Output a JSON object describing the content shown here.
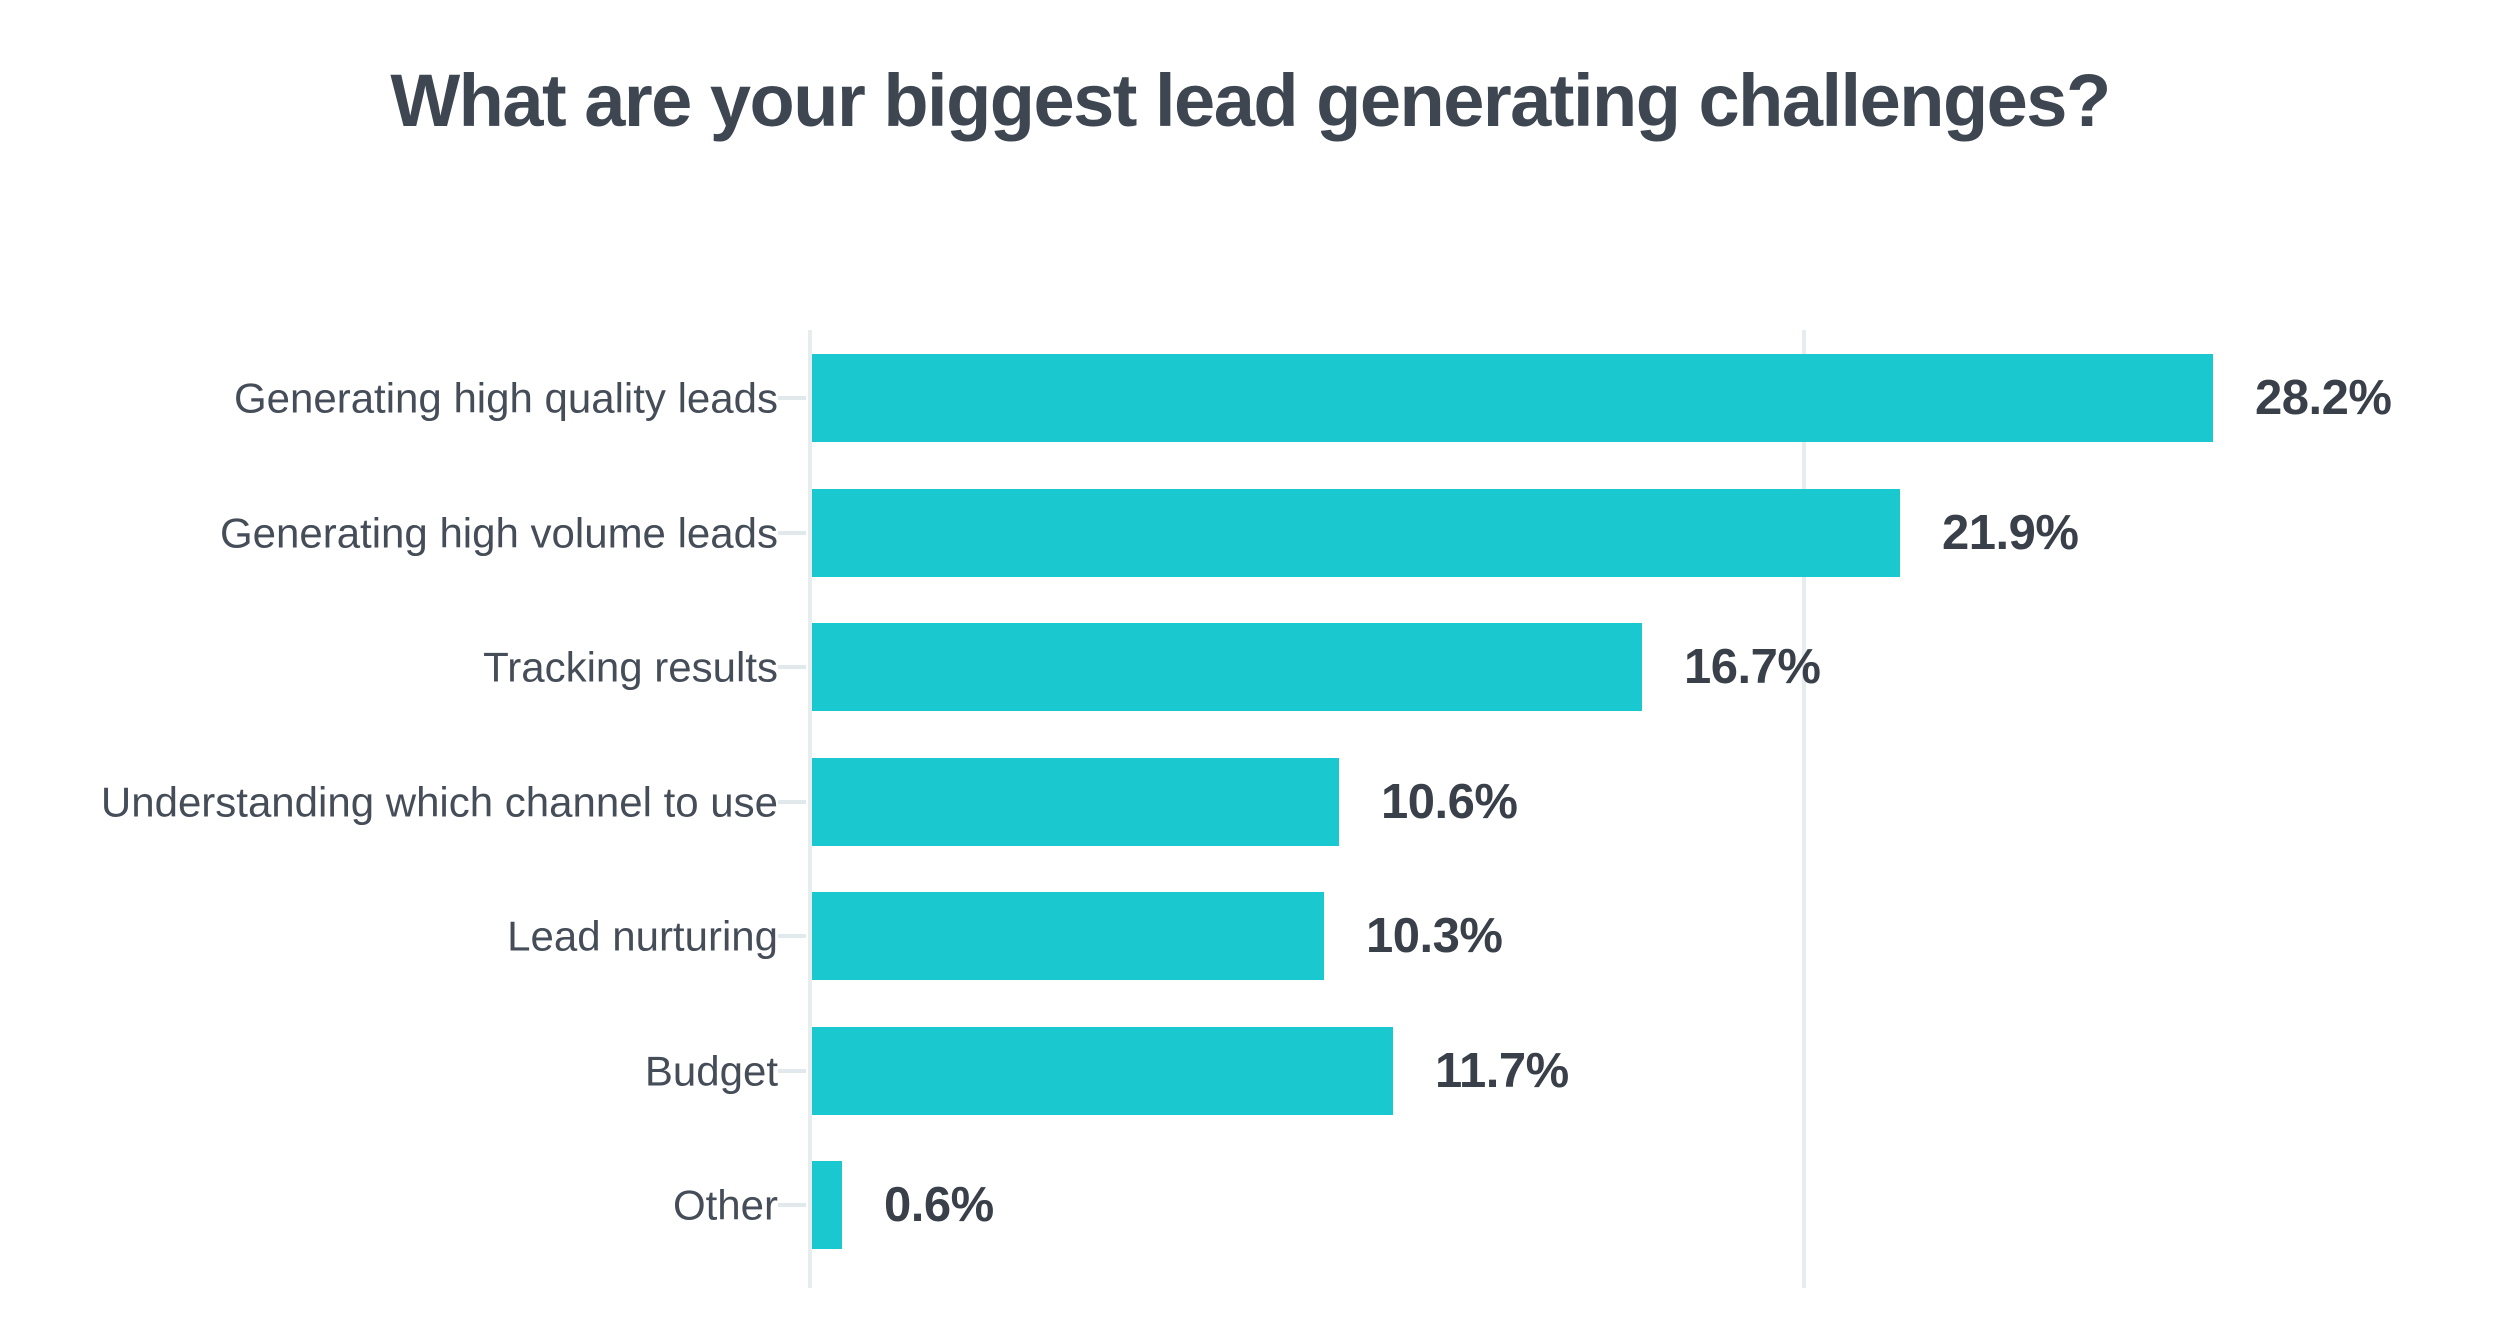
{
  "chart_data": {
    "type": "bar",
    "orientation": "horizontal",
    "title": "What are your biggest lead generating challenges?",
    "categories": [
      "Generating high quality leads",
      "Generating high volume leads",
      "Tracking results",
      "Understanding which channel to use",
      "Lead nurturing",
      "Budget",
      "Other"
    ],
    "values": [
      28.2,
      21.9,
      16.7,
      10.6,
      10.3,
      11.7,
      0.6
    ],
    "value_labels": [
      "28.2%",
      "21.9%",
      "16.7%",
      "10.6%",
      "10.3%",
      "11.7%",
      "0.6%"
    ],
    "xlabel": "",
    "ylabel": "",
    "xlim": [
      0,
      32.3
    ],
    "gridlines": [
      0,
      20
    ],
    "legend": "none",
    "background": "#ffffff",
    "colors": {
      "bar": "#19c9cf",
      "title": "#3d4651",
      "category_label": "#454d59",
      "value_label": "#394049",
      "axis_line": "#e7edee",
      "tick": "#e2e9ec"
    }
  }
}
